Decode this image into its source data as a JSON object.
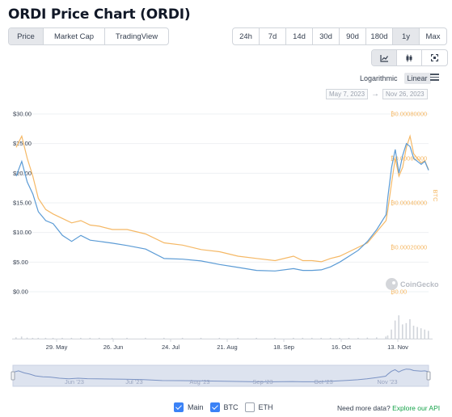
{
  "title": "ORDI Price Chart (ORDI)",
  "tabs": [
    {
      "label": "Price",
      "active": true
    },
    {
      "label": "Market Cap",
      "active": false
    },
    {
      "label": "TradingView",
      "active": false
    }
  ],
  "ranges": [
    {
      "label": "24h",
      "active": false
    },
    {
      "label": "7d",
      "active": false
    },
    {
      "label": "14d",
      "active": false
    },
    {
      "label": "30d",
      "active": false
    },
    {
      "label": "90d",
      "active": false
    },
    {
      "label": "180d",
      "active": false
    },
    {
      "label": "1y",
      "active": true
    },
    {
      "label": "Max",
      "active": false
    }
  ],
  "chart_types": [
    {
      "icon": "line-chart-icon",
      "active": true
    },
    {
      "icon": "candlestick-icon",
      "active": false
    },
    {
      "icon": "fullscreen-icon",
      "active": false
    }
  ],
  "scale": {
    "logarithmic": "Logarithmic",
    "linear": "Linear",
    "selected": "Linear"
  },
  "date_range": {
    "from": "May 7, 2023",
    "to": "Nov 26, 2023",
    "arrow": "→"
  },
  "colors": {
    "usd": "#5b9bd5",
    "btc": "#f5b865",
    "volume": "#d1d5db",
    "navigator": "#dde3ef"
  },
  "watermark": "CoinGecko",
  "legend": [
    {
      "label": "Main",
      "checked": true
    },
    {
      "label": "BTC",
      "checked": true
    },
    {
      "label": "ETH",
      "checked": false
    }
  ],
  "need_more": {
    "text": "Need more data?",
    "link": "Explore our API"
  },
  "chart_data": {
    "type": "line",
    "x_ticks": [
      "29. May",
      "26. Jun",
      "24. Jul",
      "21. Aug",
      "18. Sep",
      "16. Oct",
      "13. Nov"
    ],
    "y_left": {
      "ticks": [
        "$0.00",
        "$5.00",
        "$10.00",
        "$15.00",
        "$20.00",
        "$25.00",
        "$30.00"
      ],
      "range": [
        0,
        30
      ]
    },
    "y_right": {
      "label": "BTC",
      "ticks": [
        "₿0.00",
        "₿0.00020000",
        "₿0.00040000",
        "₿0.00060000",
        "₿0.00080000"
      ],
      "range": [
        0,
        0.0008
      ]
    },
    "navigator_ticks": [
      "Jun '23",
      "Jul '23",
      "Aug '23",
      "Sep '23",
      "Oct '23",
      "Nov '23"
    ],
    "x": [
      0,
      3,
      6,
      9,
      12,
      16,
      20,
      25,
      30,
      35,
      40,
      45,
      52,
      60,
      70,
      80,
      90,
      100,
      110,
      120,
      130,
      140,
      150,
      155,
      160,
      165,
      170,
      175,
      180,
      185,
      190,
      195,
      200,
      201,
      203,
      205,
      207,
      209,
      211,
      213,
      215,
      217,
      219,
      221,
      223
    ],
    "series": [
      {
        "name": "Main",
        "axis": "left",
        "values": [
          19.5,
          22.0,
          18.5,
          16.5,
          13.5,
          12.0,
          11.5,
          9.5,
          8.5,
          9.5,
          8.7,
          8.5,
          8.2,
          7.8,
          7.2,
          5.6,
          5.5,
          5.2,
          4.6,
          4.1,
          3.6,
          3.5,
          3.9,
          3.6,
          3.6,
          3.7,
          4.2,
          5.0,
          6.0,
          7.0,
          8.5,
          10.5,
          13.0,
          16.0,
          21.0,
          24.0,
          20.0,
          23.0,
          25.0,
          24.5,
          22.5,
          22.0,
          21.5,
          22.0,
          20.5
        ]
      },
      {
        "name": "BTC",
        "axis": "right",
        "values": [
          0.00065,
          0.0007,
          0.0006,
          0.00052,
          0.00042,
          0.00037,
          0.00035,
          0.00033,
          0.00031,
          0.00032,
          0.0003,
          0.000295,
          0.00028,
          0.00028,
          0.00026,
          0.00022,
          0.00021,
          0.00019,
          0.00018,
          0.00016,
          0.00015,
          0.00014,
          0.00016,
          0.00014,
          0.00014,
          0.000135,
          0.00015,
          0.00016,
          0.00018,
          0.0002,
          0.00022,
          0.00027,
          0.00032,
          0.00037,
          0.00049,
          0.0006,
          0.00052,
          0.00056,
          0.00065,
          0.0007,
          0.00062,
          0.0006,
          0.00058,
          0.00059,
          0.00055
        ]
      }
    ],
    "volume": [
      0.05,
      0.08,
      0.04,
      0.03,
      0.02,
      0.02,
      0.02,
      0.02,
      0.02,
      0.02,
      0.02,
      0.02,
      0.02,
      0.02,
      0.02,
      0.02,
      0.02,
      0.02,
      0.02,
      0.02,
      0.02,
      0.02,
      0.02,
      0.02,
      0.02,
      0.02,
      0.02,
      0.02,
      0.03,
      0.03,
      0.04,
      0.05,
      0.08,
      0.12,
      0.35,
      0.7,
      0.9,
      0.55,
      0.6,
      0.75,
      0.5,
      0.45,
      0.4,
      0.35,
      0.3
    ]
  }
}
